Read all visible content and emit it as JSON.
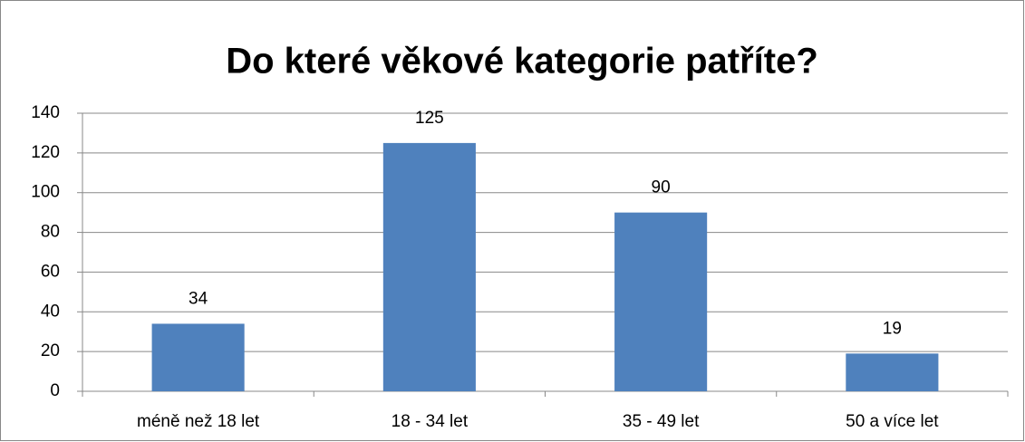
{
  "chart_data": {
    "type": "bar",
    "title": "Do které věkové kategorie patříte?",
    "categories": [
      "méně než 18 let",
      "18 - 34 let",
      "35 - 49 let",
      "50 a více let"
    ],
    "values": [
      34,
      125,
      90,
      19
    ],
    "color": "#4f81bd",
    "ylim": [
      0,
      140
    ],
    "yticks": [
      0,
      20,
      40,
      60,
      80,
      100,
      120,
      140
    ],
    "grid": true
  }
}
